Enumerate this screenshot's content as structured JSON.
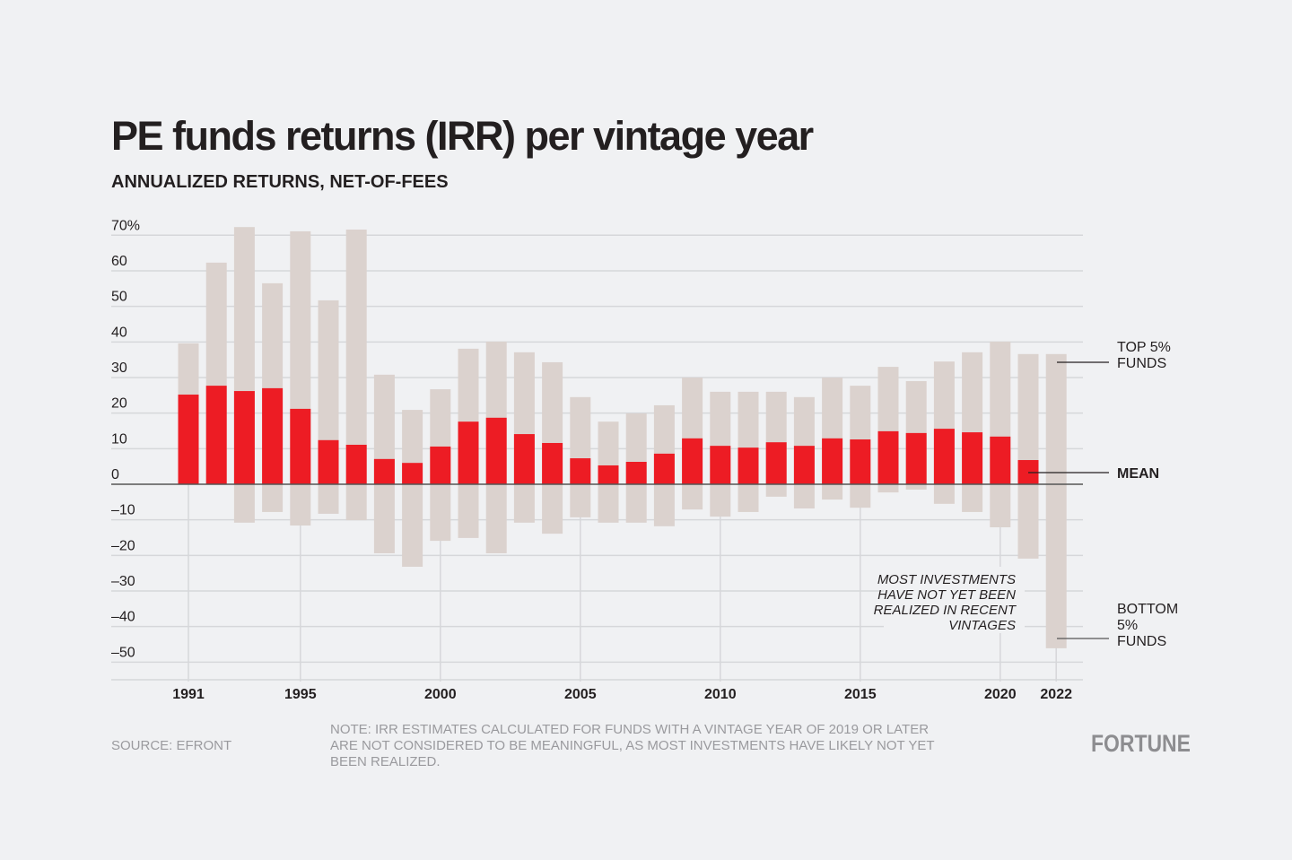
{
  "chart_data": {
    "type": "bar",
    "title": "PE funds returns (IRR) per vintage year",
    "subtitle": "ANNUALIZED RETURNS, NET-OF-FEES",
    "xlabel": "",
    "ylabel": "",
    "ylim": [
      -50,
      70
    ],
    "y_ticks": [
      "70%",
      "60",
      "50",
      "40",
      "30",
      "20",
      "10",
      "0",
      "–10",
      "–20",
      "–30",
      "–40",
      "–50"
    ],
    "y_tick_values": [
      70,
      60,
      50,
      40,
      30,
      20,
      10,
      0,
      -10,
      -20,
      -30,
      -40,
      -50
    ],
    "x_ticks": [
      "1991",
      "1995",
      "2000",
      "2005",
      "2010",
      "2015",
      "2020",
      "2022"
    ],
    "grid": true,
    "categories": [
      1991,
      1992,
      1993,
      1994,
      1995,
      1996,
      1997,
      1998,
      1999,
      2000,
      2001,
      2002,
      2003,
      2004,
      2005,
      2006,
      2007,
      2008,
      2009,
      2010,
      2011,
      2012,
      2013,
      2014,
      2015,
      2016,
      2017,
      2018,
      2019,
      2020,
      2021,
      2022
    ],
    "series": [
      {
        "name": "TOP 5% FUNDS",
        "values": [
          39.6,
          62.3,
          72.3,
          56.5,
          71.1,
          51.7,
          71.6,
          30.8,
          20.9,
          26.7,
          38.1,
          40.1,
          37.1,
          34.3,
          24.5,
          17.6,
          19.9,
          22.2,
          30.0,
          26.0,
          26.0,
          26.0,
          24.5,
          30.0,
          27.7,
          33.0,
          29.0,
          34.5,
          37.1,
          40.1,
          36.6,
          36.6
        ]
      },
      {
        "name": "BOTTOM 5% FUNDS",
        "values": [
          0,
          0,
          -10.8,
          -7.8,
          -11.6,
          -8.3,
          -10.1,
          -19.4,
          -23.2,
          -15.9,
          -15.1,
          -19.4,
          -10.8,
          -13.9,
          -9.3,
          -10.8,
          -10.8,
          -11.8,
          -7.1,
          -9.1,
          -7.8,
          -3.5,
          -6.8,
          -4.3,
          -6.6,
          -2.3,
          -1.5,
          -5.5,
          -7.8,
          -12.1,
          -20.9,
          -46.1
        ]
      },
      {
        "name": "MEAN",
        "values": [
          25.2,
          27.7,
          26.2,
          27.0,
          21.2,
          12.4,
          11.1,
          7.1,
          6.0,
          10.6,
          17.6,
          18.7,
          14.1,
          11.6,
          7.3,
          5.3,
          6.3,
          8.6,
          12.9,
          10.8,
          10.3,
          11.8,
          10.8,
          12.9,
          12.6,
          14.9,
          14.4,
          15.6,
          14.6,
          13.4,
          6.8,
          null
        ]
      }
    ],
    "annotations": {
      "top_label": [
        "TOP 5%",
        "FUNDS"
      ],
      "mean_label": "MEAN",
      "bottom_label": [
        "BOTTOM",
        "5%",
        "FUNDS"
      ],
      "recent_note": [
        "MOST INVESTMENTS",
        "HAVE NOT YET BEEN",
        "REALIZED IN RECENT",
        "VINTAGES"
      ]
    },
    "colors": {
      "range": "#dbd2ce",
      "mean": "#ed1c24",
      "background": "#f0f1f3"
    }
  },
  "footer": {
    "source": "SOURCE: EFRONT",
    "note": "NOTE: IRR ESTIMATES CALCULATED FOR FUNDS WITH A VINTAGE YEAR OF 2019 OR LATER ARE NOT CONSIDERED TO BE MEANINGFUL, AS MOST INVESTMENTS HAVE LIKELY NOT YET BEEN REALIZED.",
    "logo": "FORTUNE"
  }
}
